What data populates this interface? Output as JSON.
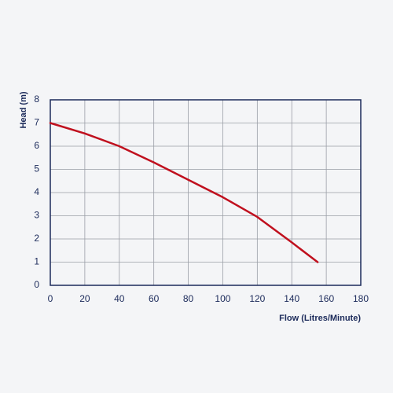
{
  "chart_data": {
    "type": "line",
    "x_label": "Flow (Litres/Minute)",
    "y_label": "Head (m)",
    "x": [
      0,
      20,
      40,
      60,
      80,
      100,
      120,
      140,
      155
    ],
    "series": [
      {
        "color": "#c0101e",
        "values": [
          7,
          6.55,
          6.0,
          5.3,
          4.55,
          3.8,
          2.95,
          1.85,
          1.0
        ]
      }
    ],
    "xlim": [
      0,
      180
    ],
    "xticks": [
      0,
      20,
      40,
      60,
      80,
      100,
      120,
      140,
      160,
      180
    ],
    "ylim": [
      0,
      8
    ],
    "yticks": [
      0,
      1,
      2,
      3,
      4,
      5,
      6,
      7,
      8
    ],
    "grid": true
  }
}
